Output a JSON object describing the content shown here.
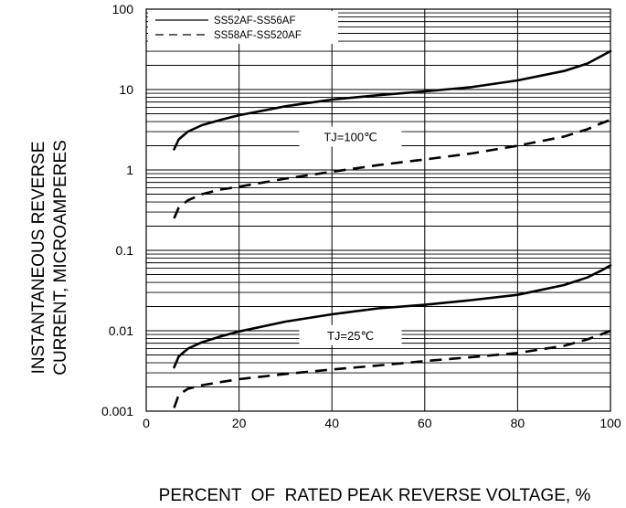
{
  "chart_data": {
    "type": "line",
    "title": "",
    "xlabel": "PERCENT  OF  RATED PEAK REVERSE VOLTAGE, %",
    "ylabel_lines": [
      "INSTANTANEOUS REVERSE",
      "CURRENT, MICROAMPERES"
    ],
    "xlim": [
      0,
      100
    ],
    "ylim": [
      0.001,
      100
    ],
    "yscale": "log",
    "x_ticks": [
      "0",
      "20",
      "40",
      "60",
      "80",
      "100"
    ],
    "y_ticks": [
      "0.001",
      "0.01",
      "0.1",
      "1",
      "10",
      "100"
    ],
    "grid": true,
    "legend_position": "top-left",
    "annotations": [
      {
        "text": "TJ=100℃",
        "x": 44,
        "y": 2.6
      },
      {
        "text": "TJ=25℃",
        "x": 44,
        "y": 0.0088
      }
    ],
    "series": [
      {
        "name": "SS52AF-SS56AF",
        "style": "solid",
        "condition": "TJ=100℃",
        "x": [
          6,
          7,
          9,
          12,
          16,
          20,
          30,
          40,
          50,
          60,
          70,
          80,
          90,
          95,
          98,
          100
        ],
        "y": [
          1.8,
          2.4,
          3.0,
          3.6,
          4.2,
          4.8,
          6.2,
          7.5,
          8.5,
          9.5,
          10.7,
          13,
          17,
          21,
          26,
          30
        ]
      },
      {
        "name": "SS58AF-SS520AF",
        "style": "dashed",
        "condition": "TJ=100℃",
        "x": [
          6,
          7,
          9,
          12,
          16,
          20,
          30,
          40,
          50,
          60,
          70,
          80,
          90,
          95,
          98,
          100
        ],
        "y": [
          0.25,
          0.34,
          0.42,
          0.5,
          0.57,
          0.62,
          0.78,
          0.95,
          1.15,
          1.35,
          1.6,
          2.0,
          2.6,
          3.2,
          3.8,
          4.2
        ]
      },
      {
        "name": "SS52AF-SS56AF",
        "style": "solid",
        "condition": "TJ=25℃",
        "x": [
          6,
          7,
          9,
          12,
          16,
          20,
          30,
          40,
          50,
          60,
          70,
          80,
          90,
          95,
          98,
          100
        ],
        "y": [
          0.0035,
          0.0048,
          0.006,
          0.0072,
          0.0085,
          0.0098,
          0.013,
          0.016,
          0.019,
          0.021,
          0.024,
          0.028,
          0.037,
          0.046,
          0.056,
          0.065
        ]
      },
      {
        "name": "SS58AF-SS520AF",
        "style": "dashed",
        "condition": "TJ=25℃",
        "x": [
          6,
          7,
          9,
          12,
          16,
          20,
          30,
          40,
          50,
          60,
          70,
          80,
          90,
          95,
          98,
          100
        ],
        "y": [
          0.0011,
          0.0016,
          0.0019,
          0.0021,
          0.0023,
          0.0025,
          0.0029,
          0.0033,
          0.0037,
          0.0042,
          0.0047,
          0.0053,
          0.0065,
          0.0078,
          0.009,
          0.01
        ]
      }
    ]
  },
  "legend": {
    "items": [
      {
        "label": "SS52AF-SS56AF",
        "style": "solid"
      },
      {
        "label": "SS58AF-SS520AF",
        "style": "dashed"
      }
    ]
  },
  "colors": {
    "line": "#000000",
    "grid": "#000000",
    "background": "#ffffff"
  }
}
